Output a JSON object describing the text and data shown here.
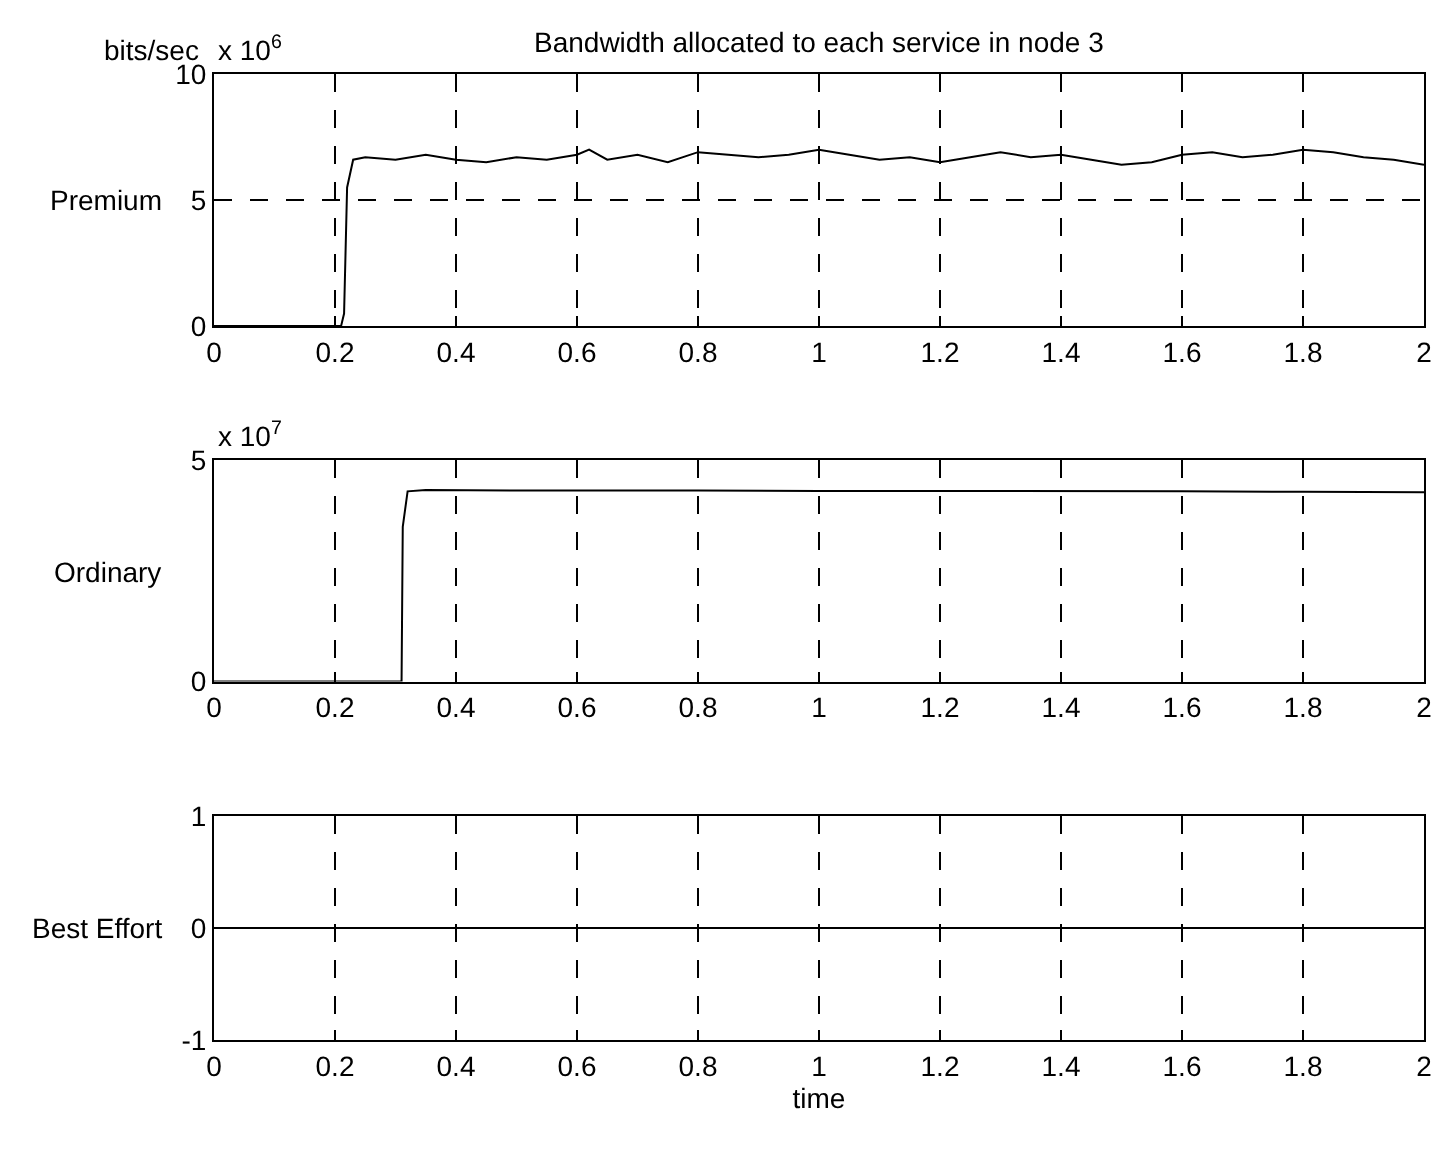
{
  "chart_data": [
    {
      "type": "line",
      "title": "Bandwidth allocated to each service in node 3",
      "ylabel": "Premium",
      "annotations": [
        "bits/sec",
        "x 10$^{6}$"
      ],
      "x": [
        0,
        0.21,
        0.215,
        0.22,
        0.23,
        0.25,
        0.3,
        0.35,
        0.4,
        0.45,
        0.5,
        0.55,
        0.6,
        0.62,
        0.65,
        0.7,
        0.75,
        0.8,
        0.85,
        0.9,
        0.95,
        1.0,
        1.05,
        1.1,
        1.15,
        1.2,
        1.25,
        1.3,
        1.35,
        1.4,
        1.45,
        1.5,
        1.55,
        1.6,
        1.65,
        1.7,
        1.75,
        1.8,
        1.85,
        1.9,
        1.95,
        2.0
      ],
      "series": [
        {
          "color": "#000000",
          "values": [
            0,
            0,
            0.5,
            5.5,
            6.6,
            6.7,
            6.6,
            6.8,
            6.6,
            6.5,
            6.7,
            6.6,
            6.8,
            7.0,
            6.6,
            6.8,
            6.5,
            6.9,
            6.8,
            6.7,
            6.8,
            7.0,
            6.8,
            6.6,
            6.7,
            6.5,
            6.7,
            6.9,
            6.7,
            6.8,
            6.6,
            6.4,
            6.5,
            6.8,
            6.9,
            6.7,
            6.8,
            7.0,
            6.9,
            6.7,
            6.6,
            6.4
          ]
        }
      ],
      "xlim": [
        0,
        2
      ],
      "xticks": [
        0,
        0.2,
        0.4,
        0.6,
        0.8,
        1,
        1.2,
        1.4,
        1.6,
        1.8,
        2
      ],
      "ylim": [
        0,
        10
      ],
      "yticks": [
        0,
        5,
        10
      ],
      "grid": true
    },
    {
      "type": "line",
      "ylabel": "Ordinary",
      "annotations": [
        "x 10$^{7}$"
      ],
      "x": [
        0,
        0.31,
        0.312,
        0.32,
        0.35,
        0.5,
        0.8,
        1.0,
        1.3,
        1.6,
        1.8,
        2.0
      ],
      "series": [
        {
          "color": "#000000",
          "values": [
            0,
            0,
            3.5,
            4.3,
            4.33,
            4.32,
            4.32,
            4.31,
            4.31,
            4.3,
            4.29,
            4.28
          ]
        }
      ],
      "xlim": [
        0,
        2
      ],
      "xticks": [
        0,
        0.2,
        0.4,
        0.6,
        0.8,
        1,
        1.2,
        1.4,
        1.6,
        1.8,
        2
      ],
      "ylim": [
        0,
        5
      ],
      "yticks": [
        0,
        5
      ],
      "grid": true
    },
    {
      "type": "line",
      "ylabel": "Best Effort",
      "xlabel": "time",
      "x": [
        0,
        2
      ],
      "series": [
        {
          "color": "#000000",
          "values": [
            0,
            0
          ]
        }
      ],
      "xlim": [
        0,
        2
      ],
      "xticks": [
        0,
        0.2,
        0.4,
        0.6,
        0.8,
        1,
        1.2,
        1.4,
        1.6,
        1.8,
        2
      ],
      "ylim": [
        -1,
        1
      ],
      "yticks": [
        -1,
        0,
        1
      ],
      "grid": "x"
    }
  ]
}
